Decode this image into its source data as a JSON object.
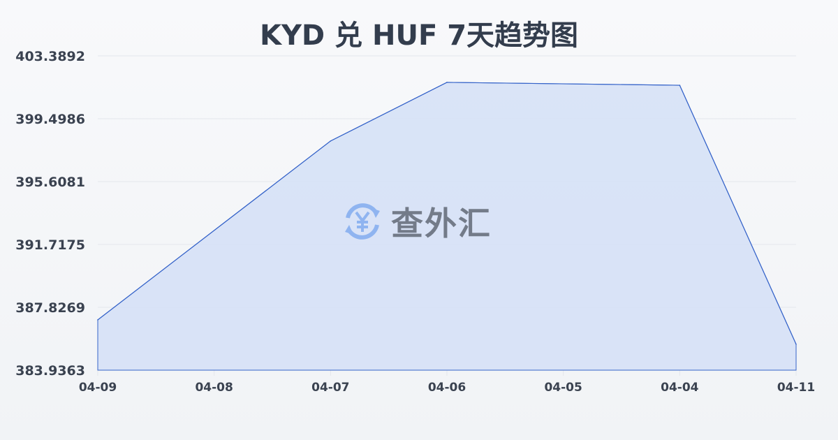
{
  "chart_data": {
    "type": "area",
    "title": "KYD 兑 HUF 7天趋势图",
    "categories": [
      "04-09",
      "04-08",
      "04-07",
      "04-06",
      "04-05",
      "04-04",
      "04-11"
    ],
    "values": [
      387.05,
      null,
      398.12,
      401.75,
      null,
      401.57,
      385.54
    ],
    "yticks": [
      "403.3892",
      "399.4986",
      "395.6081",
      "391.7175",
      "387.8269",
      "383.9363"
    ],
    "ylim": [
      383.9363,
      403.3892
    ],
    "grid": true,
    "colors": {
      "line": "#3563c9",
      "fill": "#d6e1f6"
    }
  },
  "watermark": {
    "text": "查外汇",
    "icon": "yen-exchange-icon"
  }
}
